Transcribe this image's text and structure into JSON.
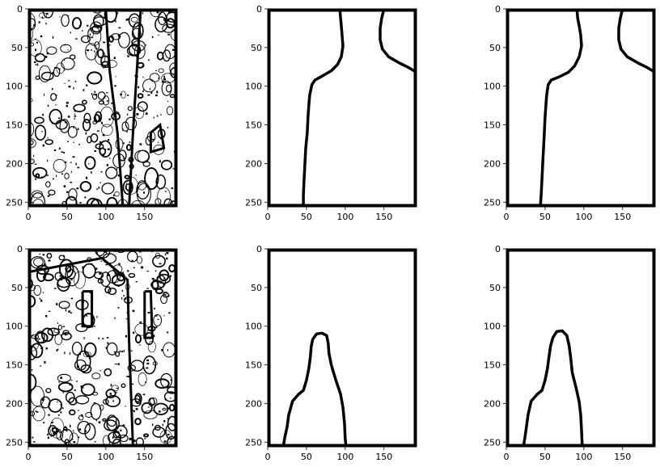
{
  "figure": {
    "colors": {
      "ink": "#000000",
      "background": "#ffffff"
    },
    "panels": [
      {
        "id": "top-left",
        "content": "edge-map",
        "xticks": [
          "0",
          "50",
          "100",
          "150"
        ],
        "yticks": [
          "0",
          "50",
          "100",
          "150",
          "200",
          "250"
        ]
      },
      {
        "id": "top-middle",
        "content": "silhouette-contour",
        "xticks": [
          "0",
          "50",
          "100",
          "150"
        ],
        "yticks": [
          "0",
          "50",
          "100",
          "150",
          "200",
          "250"
        ]
      },
      {
        "id": "top-right",
        "content": "silhouette-contour",
        "xticks": [
          "0",
          "50",
          "100",
          "150"
        ],
        "yticks": [
          "0",
          "50",
          "100",
          "150",
          "200",
          "250"
        ]
      },
      {
        "id": "bottom-left",
        "content": "edge-map",
        "xticks": [
          "0",
          "50",
          "100",
          "150"
        ],
        "yticks": [
          "0",
          "50",
          "100",
          "150",
          "200",
          "250"
        ]
      },
      {
        "id": "bottom-middle",
        "content": "silhouette-contour",
        "xticks": [
          "0",
          "50",
          "100",
          "150"
        ],
        "yticks": [
          "0",
          "50",
          "100",
          "150",
          "200",
          "250"
        ]
      },
      {
        "id": "bottom-right",
        "content": "silhouette-contour",
        "xticks": [
          "0",
          "50",
          "100",
          "150"
        ],
        "yticks": [
          "0",
          "50",
          "100",
          "150",
          "200",
          "250"
        ]
      }
    ]
  }
}
